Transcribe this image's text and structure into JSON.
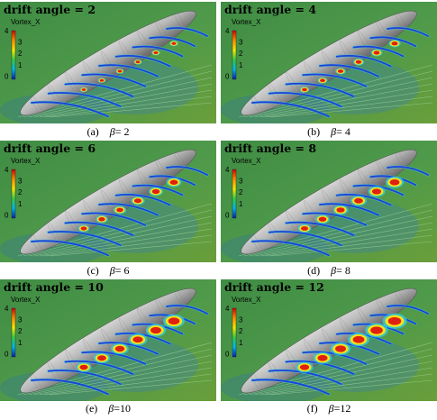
{
  "panels": [
    {
      "title": "drift angle = 2",
      "letter": "(a)",
      "beta_symbol": "β",
      "beta_value": "= 2"
    },
    {
      "title": "drift angle = 4",
      "letter": "(b)",
      "beta_symbol": "β",
      "beta_value": "= 4"
    },
    {
      "title": "drift angle = 6",
      "letter": "(c)",
      "beta_symbol": "β",
      "beta_value": "= 6"
    },
    {
      "title": "drift angle = 8",
      "letter": "(d)",
      "beta_symbol": "β",
      "beta_value": "= 8"
    },
    {
      "title": "drift angle = 10",
      "letter": "(e)",
      "beta_symbol": "β",
      "beta_value": "=10"
    },
    {
      "title": "drift angle = 12",
      "letter": "(f)",
      "beta_symbol": "β",
      "beta_value": "=12"
    }
  ],
  "colorbar": {
    "label": "Vortex_X",
    "ticks": [
      "4",
      "3",
      "2",
      "1",
      "0"
    ],
    "colors": [
      "#d40000",
      "#ff8c00",
      "#f3e600",
      "#33cc44",
      "#00b5e5",
      "#0a1aa8"
    ]
  },
  "field_colors": {
    "background": "#4f9a4a",
    "hull": "#b8b8b8",
    "vortex_core": "#e02010",
    "vortex_ring": "#f5e21a",
    "streak": "#1f3fd8",
    "streak_halo": "#30d0e0"
  }
}
